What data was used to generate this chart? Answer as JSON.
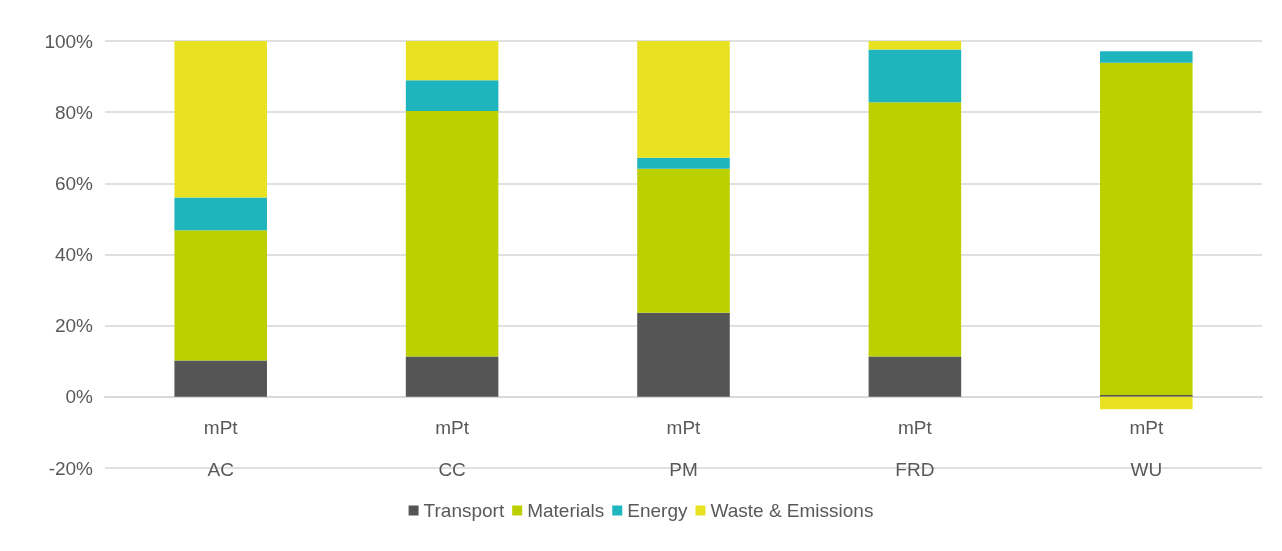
{
  "chart_data": {
    "type": "bar",
    "stacked": true,
    "categories": [
      "mPt\nAC",
      "mPt\nCC",
      "mPt\nPM",
      "mPt\nFRD",
      "mPt\nWU"
    ],
    "series": [
      {
        "name": "Transport",
        "color": "#555555",
        "values": [
          10.2,
          11.3,
          23.6,
          11.3,
          0.5
        ]
      },
      {
        "name": "Materials",
        "color": "#bccf00",
        "values": [
          36.6,
          69.0,
          40.5,
          71.5,
          93.4
        ]
      },
      {
        "name": "Energy",
        "color": "#1fb5bf",
        "values": [
          9.2,
          8.7,
          3.1,
          14.8,
          3.2
        ]
      },
      {
        "name": "Waste & Emissions",
        "color": "#e9e223",
        "values": [
          44.0,
          11.0,
          32.8,
          2.4,
          -3.5
        ]
      }
    ],
    "ylim": [
      -20,
      100
    ],
    "yticks": [
      {
        "value": -20,
        "label": "-20%"
      },
      {
        "value": 0,
        "label": "0%"
      },
      {
        "value": 20,
        "label": "20%"
      },
      {
        "value": 40,
        "label": "40%"
      },
      {
        "value": 60,
        "label": "60%"
      },
      {
        "value": 80,
        "label": "80%"
      },
      {
        "value": 100,
        "label": "100%"
      }
    ],
    "grid": "y",
    "legend": "bottom"
  }
}
